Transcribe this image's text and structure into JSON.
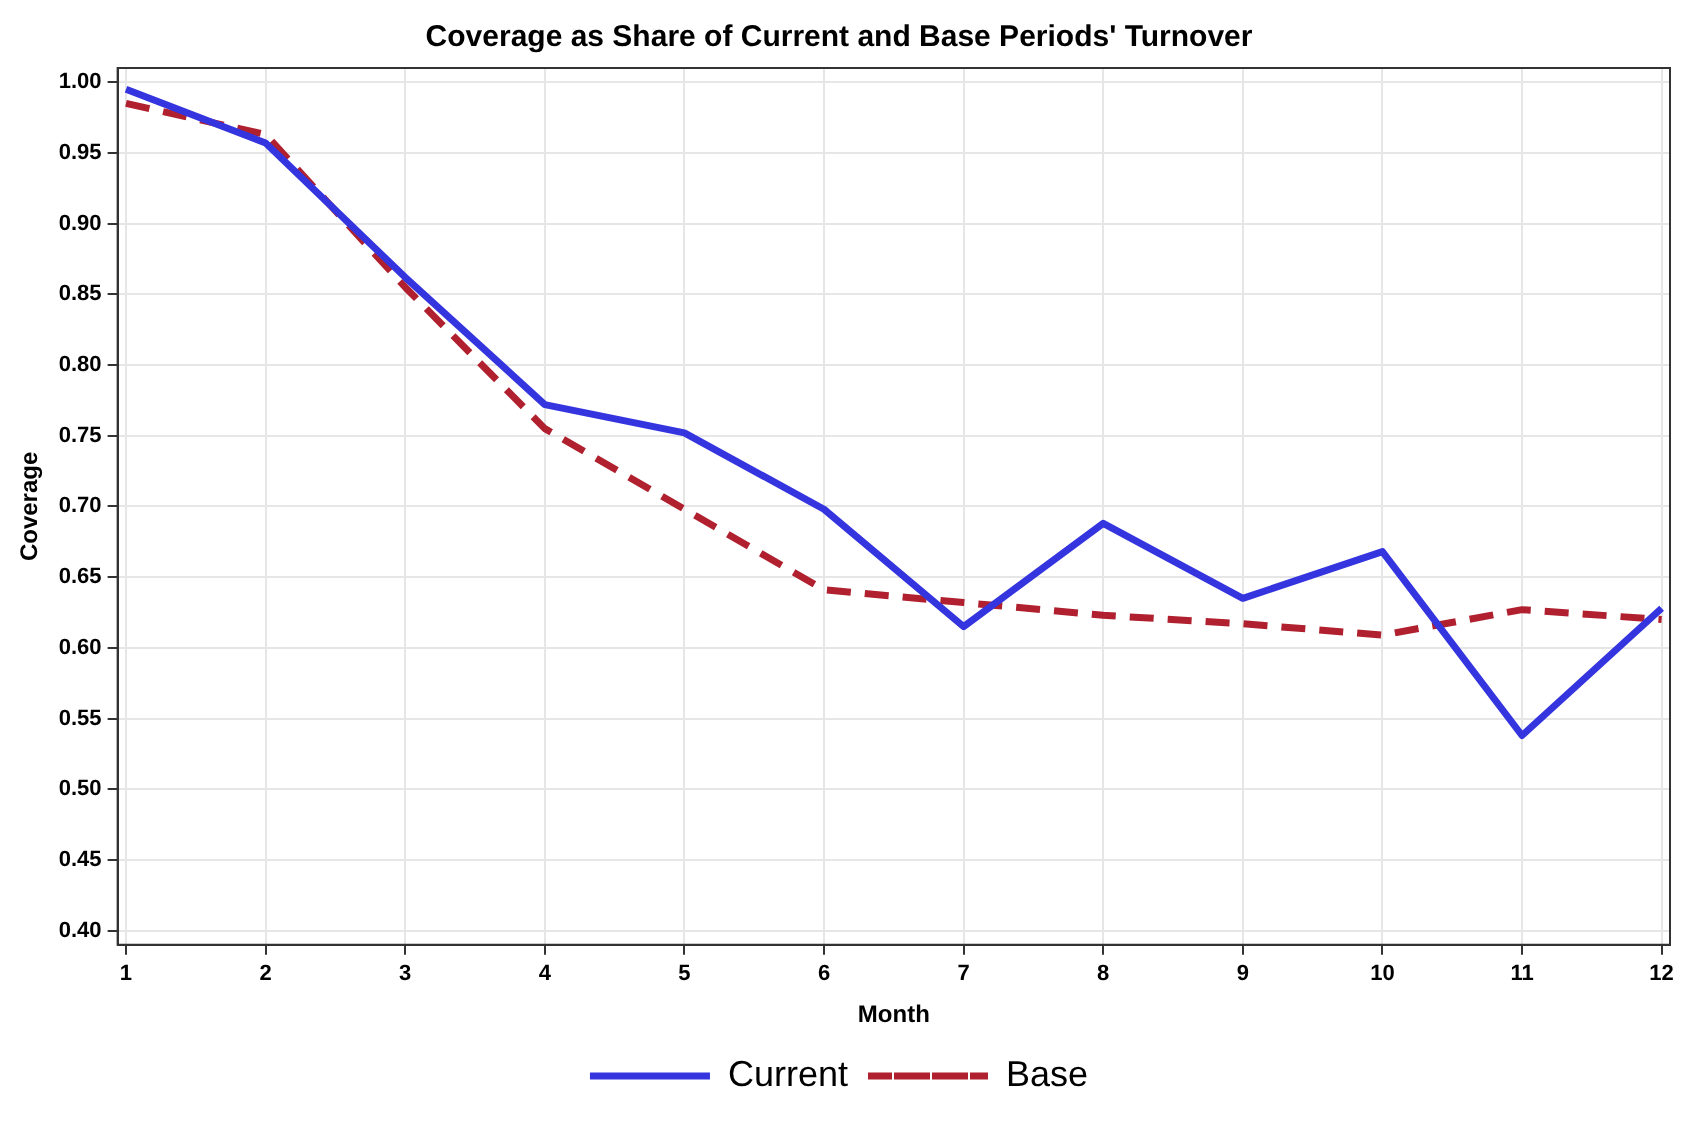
{
  "chart_data": {
    "type": "line",
    "title": "Coverage as Share of Current and Base Periods' Turnover",
    "xlabel": "Month",
    "ylabel": "Coverage",
    "x": [
      1,
      2,
      3,
      4,
      5,
      6,
      7,
      8,
      9,
      10,
      11,
      12
    ],
    "series": [
      {
        "name": "Current",
        "color": "#3535e0",
        "line_style": "solid",
        "values": [
          0.995,
          0.957,
          0.862,
          0.772,
          0.752,
          0.698,
          0.615,
          0.688,
          0.635,
          0.668,
          0.538,
          0.628
        ]
      },
      {
        "name": "Base",
        "color": "#b0202e",
        "line_style": "dashed",
        "values": [
          0.985,
          0.963,
          0.855,
          0.755,
          0.698,
          0.641,
          0.632,
          0.623,
          0.617,
          0.609,
          0.627,
          0.62
        ]
      }
    ],
    "xlim": [
      0.94,
      12.06
    ],
    "xticks": [
      1,
      2,
      3,
      4,
      5,
      6,
      7,
      8,
      9,
      10,
      11,
      12
    ],
    "ylim": [
      0.39,
      1.01
    ],
    "yticks": [
      {
        "value": 0.4,
        "label": "0.40"
      },
      {
        "value": 0.45,
        "label": "0.45"
      },
      {
        "value": 0.5,
        "label": "0.50"
      },
      {
        "value": 0.55,
        "label": "0.55"
      },
      {
        "value": 0.6,
        "label": "0.60"
      },
      {
        "value": 0.65,
        "label": "0.65"
      },
      {
        "value": 0.7,
        "label": "0.70"
      },
      {
        "value": 0.75,
        "label": "0.75"
      },
      {
        "value": 0.8,
        "label": "0.80"
      },
      {
        "value": 0.85,
        "label": "0.85"
      },
      {
        "value": 0.9,
        "label": "0.90"
      },
      {
        "value": 0.95,
        "label": "0.95"
      },
      {
        "value": 1.0,
        "label": "1.00"
      }
    ],
    "grid": true,
    "legend": "bottom",
    "marker": "none"
  }
}
